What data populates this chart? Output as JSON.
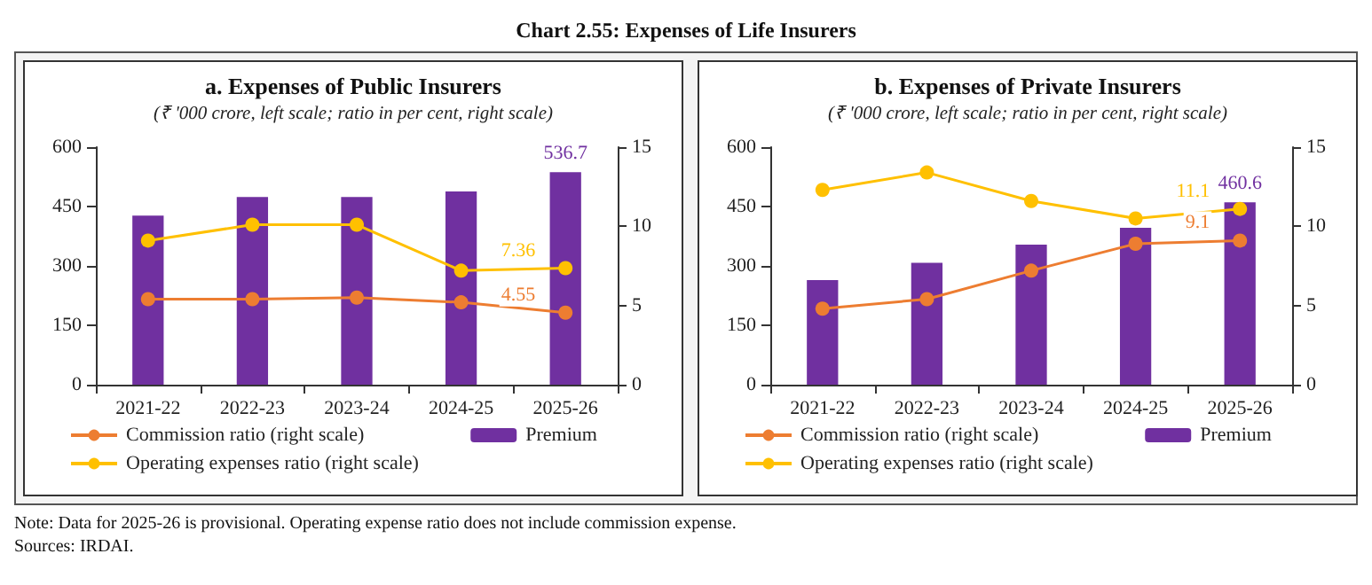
{
  "chart_data": [
    {
      "type": "other",
      "title": "Chart 2.55: Expenses of Life Insurers",
      "annotations": [
        "Note: Data for 2025-26 is provisional. Operating expense ratio does not include commission expense.",
        "Sources: IRDAI."
      ]
    },
    {
      "type": "bar",
      "title": "a. Expenses of Public Insurers",
      "subtitle": "(₹ '000 crore, left scale; ratio in per cent, right scale)",
      "categories": [
        "2021-22",
        "2022-23",
        "2023-24",
        "2024-25",
        "2025-26"
      ],
      "series": [
        {
          "name": "Commission ratio (right scale)",
          "type": "line",
          "axis": "y2",
          "color": "#ed7d31",
          "values": [
            5.4,
            5.4,
            5.5,
            5.2,
            4.55
          ],
          "value_labels": [
            null,
            null,
            null,
            null,
            "4.55"
          ]
        },
        {
          "name": "Premium",
          "type": "bar",
          "color": "#7030a0",
          "values": [
            427,
            474,
            474,
            488,
            536.7
          ],
          "value_labels": [
            null,
            null,
            null,
            null,
            "536.7"
          ]
        },
        {
          "name": "Operating expenses ratio (right scale)",
          "type": "line",
          "axis": "y2",
          "color": "#ffc000",
          "values": [
            9.1,
            10.1,
            10.1,
            7.2,
            7.36
          ],
          "value_labels": [
            null,
            null,
            null,
            null,
            "7.36"
          ]
        }
      ],
      "ylim": [
        0,
        600
      ],
      "yticks": [
        0,
        150,
        300,
        450,
        600
      ],
      "y2lim": [
        0,
        15
      ],
      "y2ticks": [
        0,
        5,
        10,
        15
      ],
      "grid": false,
      "legend": "bottom",
      "marker": "circle"
    },
    {
      "type": "bar",
      "title": "b. Expenses of Private Insurers",
      "subtitle": "(₹ '000 crore, left scale; ratio in per cent, right scale)",
      "categories": [
        "2021-22",
        "2022-23",
        "2023-24",
        "2024-25",
        "2025-26"
      ],
      "series": [
        {
          "name": "Commission ratio (right scale)",
          "type": "line",
          "axis": "y2",
          "color": "#ed7d31",
          "values": [
            4.8,
            5.4,
            7.2,
            8.9,
            9.1
          ],
          "value_labels": [
            null,
            null,
            null,
            null,
            "9.1"
          ]
        },
        {
          "name": "Premium",
          "type": "bar",
          "color": "#7030a0",
          "values": [
            264,
            308,
            354,
            396,
            460.6
          ],
          "value_labels": [
            null,
            null,
            null,
            null,
            "460.6"
          ]
        },
        {
          "name": "Operating expenses ratio (right scale)",
          "type": "line",
          "axis": "y2",
          "color": "#ffc000",
          "values": [
            12.3,
            13.4,
            11.6,
            10.5,
            11.1
          ],
          "value_labels": [
            null,
            null,
            null,
            null,
            "11.1"
          ]
        }
      ],
      "ylim": [
        0,
        600
      ],
      "yticks": [
        0,
        150,
        300,
        450,
        600
      ],
      "y2lim": [
        0,
        15
      ],
      "y2ticks": [
        0,
        5,
        10,
        15
      ],
      "grid": false,
      "legend": "bottom",
      "marker": "circle"
    }
  ]
}
